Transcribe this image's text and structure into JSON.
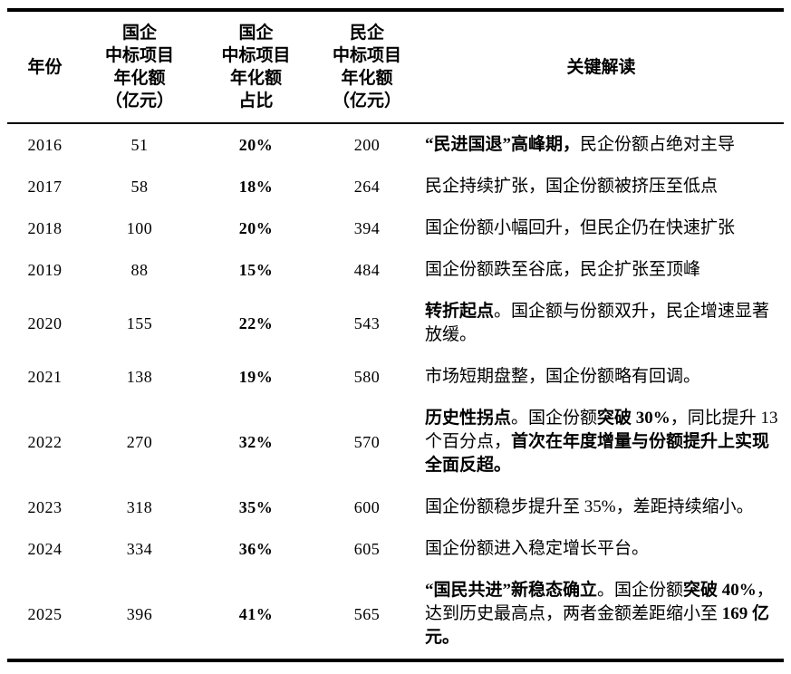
{
  "colors": {
    "background": "#ffffff",
    "text": "#000000",
    "border": "#000000"
  },
  "table": {
    "headers": [
      {
        "label": "年份"
      },
      {
        "label": "国企\n中标项目\n年化额\n（亿元）"
      },
      {
        "label": "国企\n中标项目\n年化额\n占比"
      },
      {
        "label": "民企\n中标项目\n年化额\n（亿元）"
      },
      {
        "label": "关键解读"
      }
    ],
    "rows": [
      {
        "year": "2016",
        "soe_amount": "51",
        "soe_share": "20%",
        "private_amount": "200",
        "interpretation": [
          {
            "text": "“民进国退”高峰期，",
            "bold": true
          },
          {
            "text": "民企份额占绝对主导",
            "bold": false
          }
        ]
      },
      {
        "year": "2017",
        "soe_amount": "58",
        "soe_share": "18%",
        "private_amount": "264",
        "interpretation": [
          {
            "text": "民企持续扩张，国企份额被挤压至低点",
            "bold": false
          }
        ]
      },
      {
        "year": "2018",
        "soe_amount": "100",
        "soe_share": "20%",
        "private_amount": "394",
        "interpretation": [
          {
            "text": "国企份额小幅回升，但民企仍在快速扩张",
            "bold": false
          }
        ]
      },
      {
        "year": "2019",
        "soe_amount": "88",
        "soe_share": "15%",
        "private_amount": "484",
        "interpretation": [
          {
            "text": "国企份额跌至谷底，民企扩张至顶峰",
            "bold": false
          }
        ]
      },
      {
        "year": "2020",
        "soe_amount": "155",
        "soe_share": "22%",
        "private_amount": "543",
        "interpretation": [
          {
            "text": "转折起点",
            "bold": true
          },
          {
            "text": "。国企额与份额双升，民企增速显著放缓。",
            "bold": false
          }
        ]
      },
      {
        "year": "2021",
        "soe_amount": "138",
        "soe_share": "19%",
        "private_amount": "580",
        "interpretation": [
          {
            "text": "市场短期盘整，国企份额略有回调。",
            "bold": false
          }
        ]
      },
      {
        "year": "2022",
        "soe_amount": "270",
        "soe_share": "32%",
        "private_amount": "570",
        "interpretation": [
          {
            "text": "历史性拐点",
            "bold": true
          },
          {
            "text": "。国企份额",
            "bold": false
          },
          {
            "text": "突破 30%",
            "bold": true
          },
          {
            "text": "，同比提升 13 个百分点，",
            "bold": false
          },
          {
            "text": "首次在年度增量与份额提升上实现全面反超。",
            "bold": true
          }
        ]
      },
      {
        "year": "2023",
        "soe_amount": "318",
        "soe_share": "35%",
        "private_amount": "600",
        "interpretation": [
          {
            "text": "国企份额稳步提升至 35%，差距持续缩小。",
            "bold": false
          }
        ]
      },
      {
        "year": "2024",
        "soe_amount": "334",
        "soe_share": "36%",
        "private_amount": "605",
        "interpretation": [
          {
            "text": "国企份额进入稳定增长平台。",
            "bold": false
          }
        ]
      },
      {
        "year": "2025",
        "soe_amount": "396",
        "soe_share": "41%",
        "private_amount": "565",
        "interpretation": [
          {
            "text": "“国民共进”新稳态确立",
            "bold": true
          },
          {
            "text": "。国企份额",
            "bold": false
          },
          {
            "text": "突破 40%",
            "bold": true
          },
          {
            "text": "，达到历史最高点，两者金额差距缩小至 ",
            "bold": false
          },
          {
            "text": "169 亿元。",
            "bold": true
          }
        ]
      }
    ]
  },
  "chart_data": {
    "type": "table",
    "title": "",
    "categories": [
      2016,
      2017,
      2018,
      2019,
      2020,
      2021,
      2022,
      2023,
      2024,
      2025
    ],
    "series": [
      {
        "name": "国企中标项目年化额（亿元）",
        "values": [
          51,
          58,
          100,
          88,
          155,
          138,
          270,
          318,
          334,
          396
        ]
      },
      {
        "name": "国企中标项目年化额占比",
        "values": [
          "20%",
          "18%",
          "20%",
          "15%",
          "22%",
          "19%",
          "32%",
          "35%",
          "36%",
          "41%"
        ]
      },
      {
        "name": "民企中标项目年化额（亿元）",
        "values": [
          200,
          264,
          394,
          484,
          543,
          580,
          570,
          600,
          605,
          565
        ]
      }
    ]
  }
}
